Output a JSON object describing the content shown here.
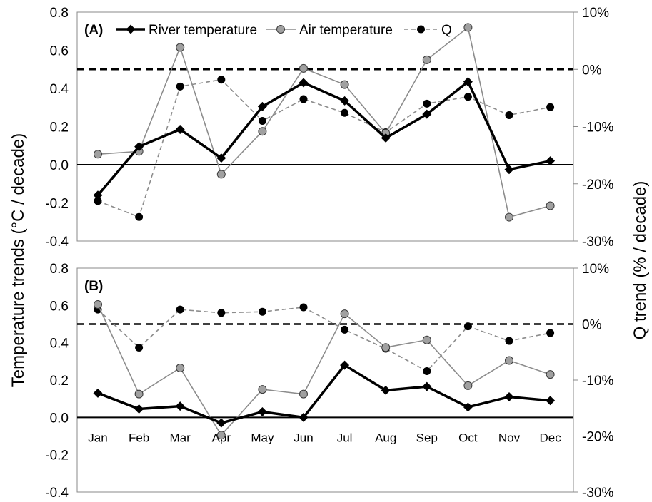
{
  "figure": {
    "left_axis_label": "Temperature trends (°C / decade)",
    "right_axis_label": "Q trend (% / decade)"
  },
  "chart_data": [
    {
      "type": "line",
      "panel_label": "(A)",
      "categories": [
        "Jan",
        "Feb",
        "Mar",
        "Apr",
        "May",
        "Jun",
        "Jul",
        "Aug",
        "Sep",
        "Oct",
        "Nov",
        "Dec"
      ],
      "show_category_labels": false,
      "left_axis": {
        "ylim": [
          -0.4,
          0.8
        ],
        "ticks": [
          "-0.4",
          "-0.2",
          "0.0",
          "0.2",
          "0.4",
          "0.6",
          "0.8"
        ]
      },
      "right_axis": {
        "ylim": [
          -30,
          10
        ],
        "ticks": [
          "-30%",
          "-20%",
          "-10%",
          "0%",
          "10%"
        ]
      },
      "legend": {
        "placement": "top",
        "entries": [
          "River temperature",
          "Air temperature",
          "Q"
        ]
      },
      "series": [
        {
          "name": "River temperature",
          "axis": "left",
          "color": "#000000",
          "style": "solid-thick",
          "marker": "diamond",
          "values": [
            -0.16,
            0.095,
            0.185,
            0.035,
            0.305,
            0.43,
            0.335,
            0.14,
            0.265,
            0.435,
            -0.025,
            0.02
          ]
        },
        {
          "name": "Air temperature",
          "axis": "left",
          "color": "#8c8c8c",
          "style": "solid-thin",
          "marker": "circle-gray",
          "values": [
            0.055,
            0.07,
            0.615,
            -0.05,
            0.175,
            0.505,
            0.42,
            0.165,
            0.55,
            0.72,
            -0.275,
            -0.215
          ]
        },
        {
          "name": "Q",
          "axis": "right",
          "color": "#8c8c8c",
          "style": "dashed-thin",
          "marker": "circle-black",
          "values": [
            -23.0,
            -25.8,
            -3.0,
            -1.8,
            -9.0,
            -5.2,
            -7.6,
            -11.0,
            -6.0,
            -4.8,
            -8.0,
            -6.6
          ]
        }
      ],
      "reference_lines": [
        {
          "axis": "left",
          "value": 0,
          "style": "solid"
        },
        {
          "axis": "right",
          "value": 0,
          "style": "dashed"
        }
      ]
    },
    {
      "type": "line",
      "panel_label": "(B)",
      "categories": [
        "Jan",
        "Feb",
        "Mar",
        "Apr",
        "May",
        "Jun",
        "Jul",
        "Aug",
        "Sep",
        "Oct",
        "Nov",
        "Dec"
      ],
      "show_category_labels": true,
      "left_axis": {
        "ylim": [
          -0.4,
          0.8
        ],
        "ticks": [
          "-0.4",
          "-0.2",
          "0.0",
          "0.2",
          "0.4",
          "0.6",
          "0.8"
        ]
      },
      "right_axis": {
        "ylim": [
          -30,
          10
        ],
        "ticks": [
          "-30%",
          "-20%",
          "-10%",
          "0%",
          "10%"
        ]
      },
      "series": [
        {
          "name": "River temperature",
          "axis": "left",
          "color": "#000000",
          "style": "solid-thick",
          "marker": "diamond",
          "values": [
            0.13,
            0.045,
            0.06,
            -0.03,
            0.03,
            0.0,
            0.28,
            0.145,
            0.165,
            0.055,
            0.11,
            0.09
          ]
        },
        {
          "name": "Air temperature",
          "axis": "left",
          "color": "#8c8c8c",
          "style": "solid-thin",
          "marker": "circle-gray",
          "values": [
            0.605,
            0.125,
            0.265,
            -0.095,
            0.15,
            0.125,
            0.555,
            0.375,
            0.415,
            0.17,
            0.305,
            0.23
          ]
        },
        {
          "name": "Q",
          "axis": "right",
          "color": "#8c8c8c",
          "style": "dashed-thin",
          "marker": "circle-black",
          "values": [
            2.6,
            -4.2,
            2.6,
            2.0,
            2.2,
            3.0,
            -1.0,
            -4.4,
            -8.4,
            -0.4,
            -3.0,
            -1.6
          ]
        }
      ],
      "reference_lines": [
        {
          "axis": "left",
          "value": 0,
          "style": "solid"
        },
        {
          "axis": "right",
          "value": 0,
          "style": "dashed"
        }
      ]
    }
  ]
}
